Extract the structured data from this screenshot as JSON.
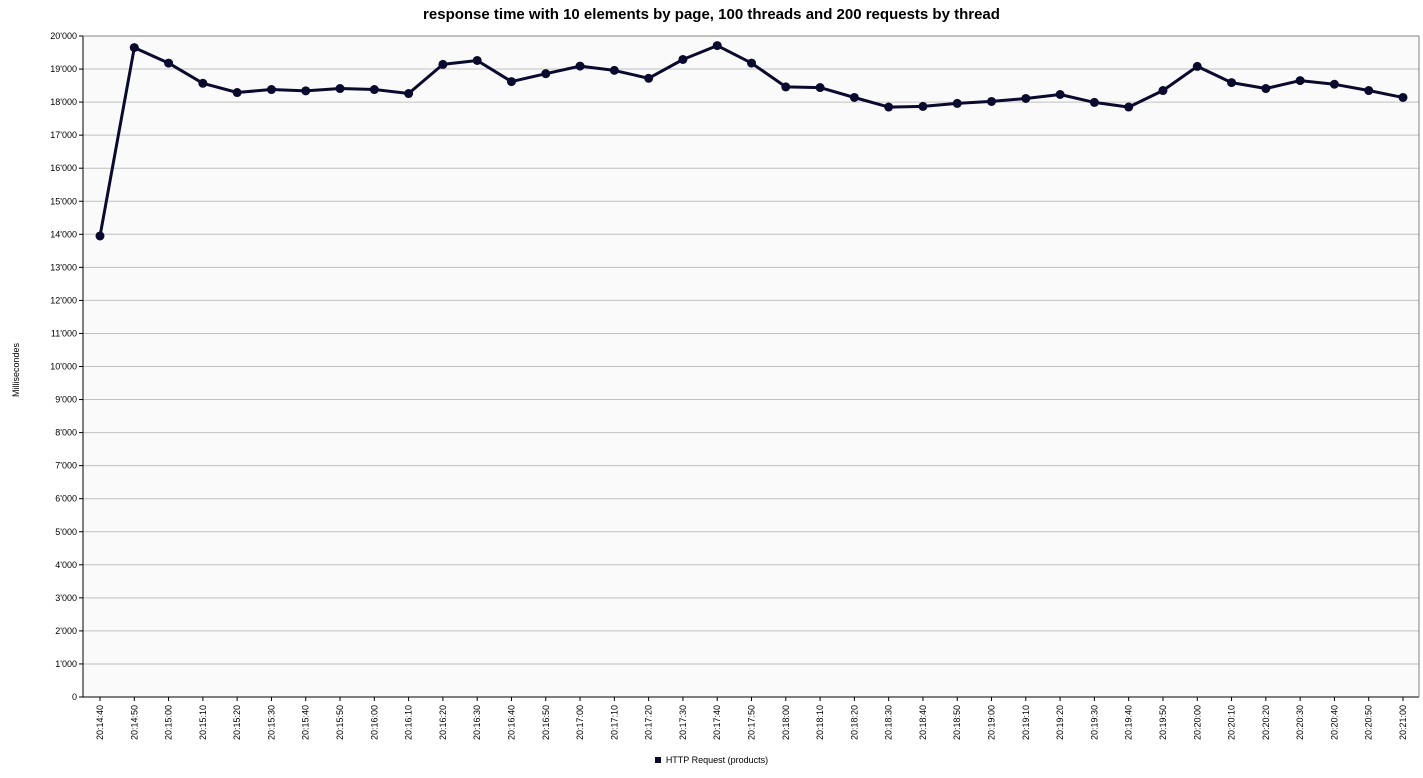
{
  "chart_data": {
    "type": "line",
    "title": "response time with 10 elements by page, 100 threads and 200 requests by thread",
    "ylabel": "Millisecondes",
    "xlabel": "",
    "ylim": [
      0,
      20000
    ],
    "ytick_values": [
      0,
      1000,
      2000,
      3000,
      4000,
      5000,
      6000,
      7000,
      8000,
      9000,
      10000,
      11000,
      12000,
      13000,
      14000,
      15000,
      16000,
      17000,
      18000,
      19000,
      20000
    ],
    "ytick_labels": [
      "0",
      "1'000",
      "2'000",
      "3'000",
      "4'000",
      "5'000",
      "6'000",
      "7'000",
      "8'000",
      "9'000",
      "10'000",
      "11'000",
      "12'000",
      "13'000",
      "14'000",
      "15'000",
      "16'000",
      "17'000",
      "18'000",
      "19'000",
      "20'000"
    ],
    "categories": [
      "20:14:40",
      "20:14:50",
      "20:15:00",
      "20:15:10",
      "20:15:20",
      "20:15:30",
      "20:15:40",
      "20:15:50",
      "20:16:00",
      "20:16:10",
      "20:16:20",
      "20:16:30",
      "20:16:40",
      "20:16:50",
      "20:17:00",
      "20:17:10",
      "20:17:20",
      "20:17:30",
      "20:17:40",
      "20:17:50",
      "20:18:00",
      "20:18:10",
      "20:18:20",
      "20:18:30",
      "20:18:40",
      "20:18:50",
      "20:19:00",
      "20:19:10",
      "20:19:20",
      "20:19:30",
      "20:19:40",
      "20:19:50",
      "20:20:00",
      "20:20:10",
      "20:20:20",
      "20:20:30",
      "20:20:40",
      "20:20:50",
      "20:21:00"
    ],
    "series": [
      {
        "name": "HTTP Request (products)",
        "color": "#0a0a2e",
        "values": [
          13950,
          19650,
          19180,
          18570,
          18290,
          18380,
          18340,
          18410,
          18380,
          18260,
          19140,
          19260,
          18620,
          18860,
          19090,
          18960,
          18720,
          19290,
          19710,
          19180,
          18460,
          18440,
          18140,
          17850,
          17870,
          17960,
          18020,
          18110,
          18230,
          17990,
          17850,
          18350,
          19080,
          18590,
          18410,
          18650,
          18540,
          18350,
          18140
        ]
      }
    ],
    "grid": true,
    "legend_position": "bottom",
    "plot_background": "#fafafa",
    "grid_color": "#c0c0c0"
  }
}
